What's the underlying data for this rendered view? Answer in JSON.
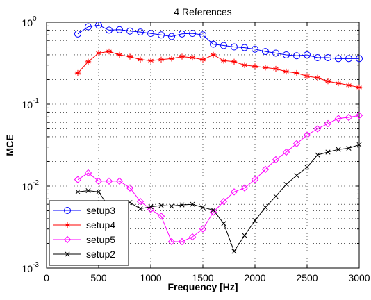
{
  "chart_data": {
    "type": "line",
    "title": "4 References",
    "xlabel": "Frequency [Hz]",
    "ylabel": "MCE",
    "xlim": [
      0,
      3000
    ],
    "ylim": [
      0.001,
      1
    ],
    "yscale": "log",
    "grid": true,
    "legend_position": "bottom-left",
    "x_ticks": [
      {
        "value": 0,
        "label": "0"
      },
      {
        "value": 500,
        "label": "500"
      },
      {
        "value": 1000,
        "label": "1000"
      },
      {
        "value": 1500,
        "label": "1500"
      },
      {
        "value": 2000,
        "label": "2000"
      },
      {
        "value": 2500,
        "label": "2500"
      },
      {
        "value": 3000,
        "label": "3000"
      }
    ],
    "y_ticks": [
      {
        "value": 0.001,
        "base": "10",
        "exponent": "-3"
      },
      {
        "value": 0.01,
        "base": "10",
        "exponent": "-2"
      },
      {
        "value": 0.1,
        "base": "10",
        "exponent": "-1"
      },
      {
        "value": 1,
        "base": "10",
        "exponent": "0"
      }
    ],
    "x": [
      300,
      400,
      500,
      600,
      700,
      800,
      900,
      1000,
      1100,
      1200,
      1300,
      1400,
      1500,
      1600,
      1700,
      1800,
      1900,
      2000,
      2100,
      2200,
      2300,
      2400,
      2500,
      2600,
      2700,
      2800,
      2900,
      3000
    ],
    "series": [
      {
        "name": "setup3",
        "color": "#0000ff",
        "marker": "circle",
        "values": [
          0.72,
          0.88,
          0.92,
          0.8,
          0.81,
          0.78,
          0.76,
          0.73,
          0.7,
          0.67,
          0.72,
          0.73,
          0.7,
          0.54,
          0.52,
          0.5,
          0.49,
          0.47,
          0.44,
          0.42,
          0.4,
          0.39,
          0.4,
          0.37,
          0.37,
          0.36,
          0.36,
          0.36
        ]
      },
      {
        "name": "setup4",
        "color": "#ff0000",
        "marker": "star",
        "values": [
          0.24,
          0.33,
          0.42,
          0.44,
          0.4,
          0.38,
          0.35,
          0.34,
          0.35,
          0.36,
          0.38,
          0.37,
          0.35,
          0.4,
          0.34,
          0.33,
          0.3,
          0.29,
          0.28,
          0.27,
          0.25,
          0.24,
          0.22,
          0.21,
          0.19,
          0.18,
          0.17,
          0.16
        ]
      },
      {
        "name": "setup5",
        "color": "#ff00ff",
        "marker": "diamond",
        "values": [
          0.012,
          0.0145,
          0.0115,
          0.0115,
          0.0115,
          0.0095,
          0.0065,
          0.0052,
          0.0043,
          0.0021,
          0.0021,
          0.0024,
          0.003,
          0.0048,
          0.0065,
          0.0085,
          0.0095,
          0.012,
          0.016,
          0.021,
          0.026,
          0.033,
          0.042,
          0.05,
          0.058,
          0.067,
          0.069,
          0.073
        ]
      },
      {
        "name": "setup2",
        "color": "#000000",
        "marker": "x",
        "values": [
          0.0085,
          0.0088,
          0.0085,
          0.0055,
          0.0062,
          0.0063,
          0.0053,
          0.0056,
          0.0058,
          0.0057,
          0.0059,
          0.006,
          0.0055,
          0.0051,
          0.0035,
          0.0016,
          0.0025,
          0.0038,
          0.0055,
          0.0075,
          0.0105,
          0.0135,
          0.017,
          0.024,
          0.026,
          0.028,
          0.029,
          0.032
        ]
      }
    ]
  }
}
